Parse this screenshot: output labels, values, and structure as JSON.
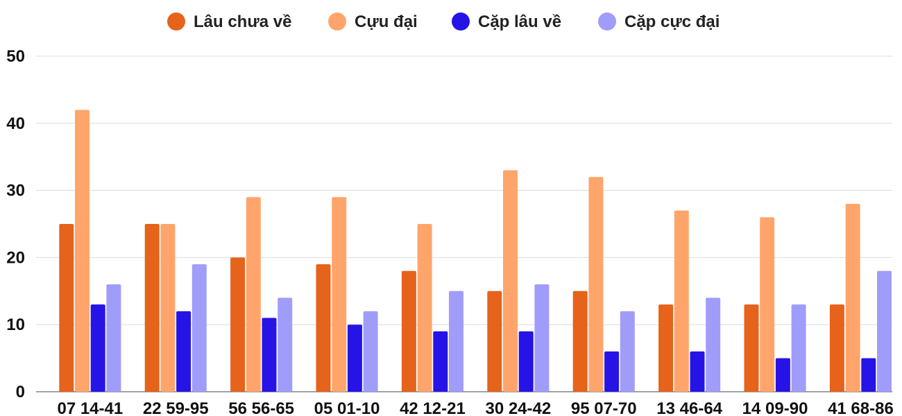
{
  "chart_data": {
    "type": "bar",
    "categories": [
      "07 14-41",
      "22 59-95",
      "56 56-65",
      "05 01-10",
      "42 12-21",
      "30 24-42",
      "95 07-70",
      "13 46-64",
      "14 09-90",
      "41 68-86"
    ],
    "series": [
      {
        "name": "Lâu chưa về",
        "color": "#e5631a",
        "values": [
          25,
          25,
          20,
          19,
          18,
          15,
          15,
          13,
          13,
          13
        ]
      },
      {
        "name": "Cựu đại",
        "color": "#ffa56b",
        "values": [
          42,
          25,
          29,
          29,
          25,
          33,
          32,
          27,
          26,
          28
        ]
      },
      {
        "name": "Cặp lâu về",
        "color": "#2614e6",
        "values": [
          13,
          12,
          11,
          10,
          9,
          9,
          6,
          6,
          5,
          5
        ]
      },
      {
        "name": "Cặp cực đại",
        "color": "#a09dfa",
        "values": [
          16,
          19,
          14,
          12,
          15,
          16,
          12,
          14,
          13,
          18
        ]
      }
    ],
    "ylim": [
      0,
      50
    ],
    "yticks": [
      0,
      10,
      20,
      30,
      40,
      50
    ],
    "grid": true,
    "legend_position": "top-center"
  }
}
